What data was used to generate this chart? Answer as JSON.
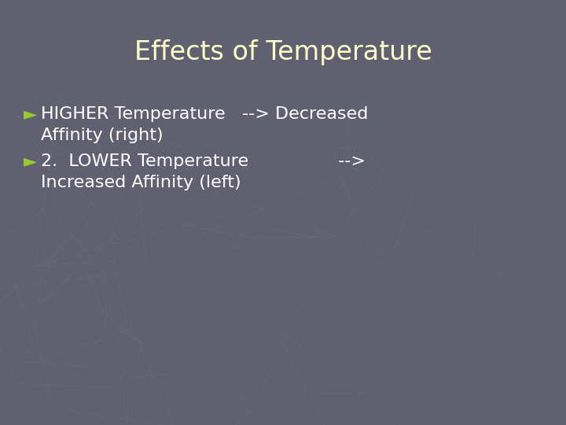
{
  "title": "Effects of Temperature",
  "title_color": "#ffffcc",
  "title_fontsize": 24,
  "background_color": "#606070",
  "bullet_color": "#99cc33",
  "bullet1_line1": "HIGHER Temperature   --> Decreased",
  "bullet1_line2": "Affinity (right)",
  "bullet2_line1": "2.  LOWER Temperature                -->",
  "bullet2_line2": "Increased Affinity (left)",
  "text_color": "#ffffff",
  "text_fontsize": 16,
  "bullet_char": "►",
  "font_family": "DejaVu Sans",
  "watermark_color": "#6e7280"
}
